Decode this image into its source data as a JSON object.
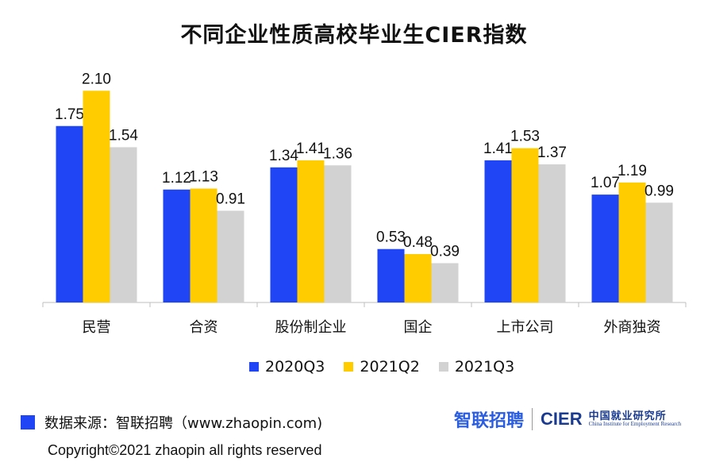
{
  "chart_data": {
    "type": "bar",
    "title": "不同企业性质高校毕业生CIER指数",
    "categories": [
      "民营",
      "合资",
      "股份制企业",
      "国企",
      "上市公司",
      "外商独资"
    ],
    "series": [
      {
        "name": "2020Q3",
        "color": "#1f45f5",
        "values": [
          1.75,
          1.12,
          1.34,
          0.53,
          1.41,
          1.07
        ]
      },
      {
        "name": "2021Q2",
        "color": "#ffcc00",
        "values": [
          2.1,
          1.13,
          1.41,
          0.48,
          1.53,
          1.19
        ]
      },
      {
        "name": "2021Q3",
        "color": "#d3d2d2",
        "values": [
          1.54,
          0.91,
          1.36,
          0.39,
          1.37,
          0.99
        ]
      }
    ],
    "ylim": [
      0,
      2.1
    ],
    "grid": false,
    "legend_position": "bottom"
  },
  "footer": {
    "source": "数据来源：智联招聘（www.zhaopin.com)",
    "logo_zhaopin": "智联招聘",
    "logo_cier": "CIER",
    "logo_cier_cn": "中国就业研究所",
    "logo_cier_en": "China Institute for Employment Research",
    "copyright": "Copyright©2021 zhaopin all rights reserved"
  }
}
